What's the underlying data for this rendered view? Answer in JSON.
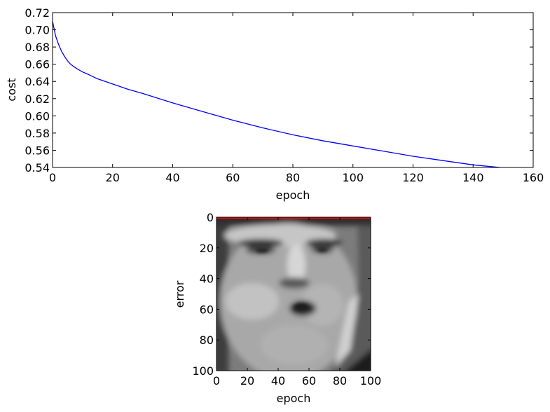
{
  "chart_data": [
    {
      "type": "line",
      "xlabel": "epoch",
      "ylabel": "cost",
      "xlim": [
        0,
        160
      ],
      "ylim": [
        0.54,
        0.72
      ],
      "xticks": [
        0,
        20,
        40,
        60,
        80,
        100,
        120,
        140,
        160
      ],
      "xtick_labels": [
        "0",
        "20",
        "40",
        "60",
        "80",
        "100",
        "120",
        "140",
        "160"
      ],
      "yticks": [
        0.54,
        0.56,
        0.58,
        0.6,
        0.62,
        0.64,
        0.66,
        0.68,
        0.7,
        0.72
      ],
      "ytick_labels": [
        "0.54",
        "0.56",
        "0.58",
        "0.60",
        "0.62",
        "0.64",
        "0.66",
        "0.68",
        "0.70",
        "0.72"
      ],
      "grid": false,
      "series": [
        {
          "color": "#0000ff",
          "x": [
            0,
            1,
            2,
            3,
            4,
            5,
            6,
            8,
            10,
            12,
            15,
            20,
            25,
            30,
            40,
            50,
            60,
            70,
            80,
            90,
            100,
            110,
            120,
            130,
            140,
            149
          ],
          "y": [
            0.71,
            0.693,
            0.683,
            0.675,
            0.669,
            0.664,
            0.66,
            0.655,
            0.651,
            0.648,
            0.643,
            0.637,
            0.631,
            0.626,
            0.615,
            0.605,
            0.595,
            0.586,
            0.578,
            0.571,
            0.565,
            0.559,
            0.553,
            0.548,
            0.543,
            0.54
          ]
        }
      ]
    },
    {
      "type": "heatmap",
      "content": "grayscale face image",
      "colormap": "gray",
      "xlabel": "epoch",
      "ylabel": "error",
      "xlim": [
        0,
        100
      ],
      "ylim": [
        100,
        0
      ],
      "xticks": [
        0,
        20,
        40,
        60,
        80,
        100
      ],
      "xtick_labels": [
        "0",
        "20",
        "40",
        "60",
        "80",
        "100"
      ],
      "yticks": [
        0,
        20,
        40,
        60,
        80,
        100
      ],
      "ytick_labels": [
        "0",
        "20",
        "40",
        "60",
        "80",
        "100"
      ],
      "overlay_line": {
        "y": 0,
        "color": "#ff0000"
      }
    }
  ]
}
